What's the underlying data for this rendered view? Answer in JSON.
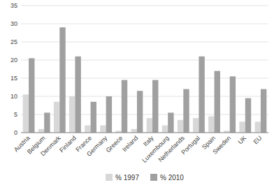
{
  "chart_data": {
    "type": "bar",
    "categories": [
      "Austria",
      "Belgium",
      "Denmark",
      "Finland",
      "France",
      "Germany",
      "Greece",
      "Ireland",
      "Italy",
      "Luxembourg",
      "Netherlands",
      "Portugal",
      "Spain",
      "Sweden",
      "UK",
      "EU"
    ],
    "series": [
      {
        "name": "% 1997",
        "color": "#d8d8d8",
        "values": [
          10.5,
          1.0,
          8.5,
          10.0,
          2.0,
          2.0,
          0.5,
          1.0,
          4.0,
          2.0,
          3.5,
          4.0,
          4.5,
          0.5,
          3.0,
          3.0
        ]
      },
      {
        "name": "% 2010",
        "color": "#a0a0a0",
        "values": [
          20.5,
          5.5,
          29.0,
          21.0,
          8.5,
          10.0,
          14.5,
          11.5,
          14.5,
          5.5,
          12.0,
          21.0,
          17.0,
          15.5,
          9.5,
          12.0
        ]
      }
    ],
    "ylim": [
      0,
      35
    ],
    "yticks": [
      0,
      5,
      10,
      15,
      20,
      25,
      30,
      35
    ],
    "grid": true,
    "legend": "bottom"
  }
}
